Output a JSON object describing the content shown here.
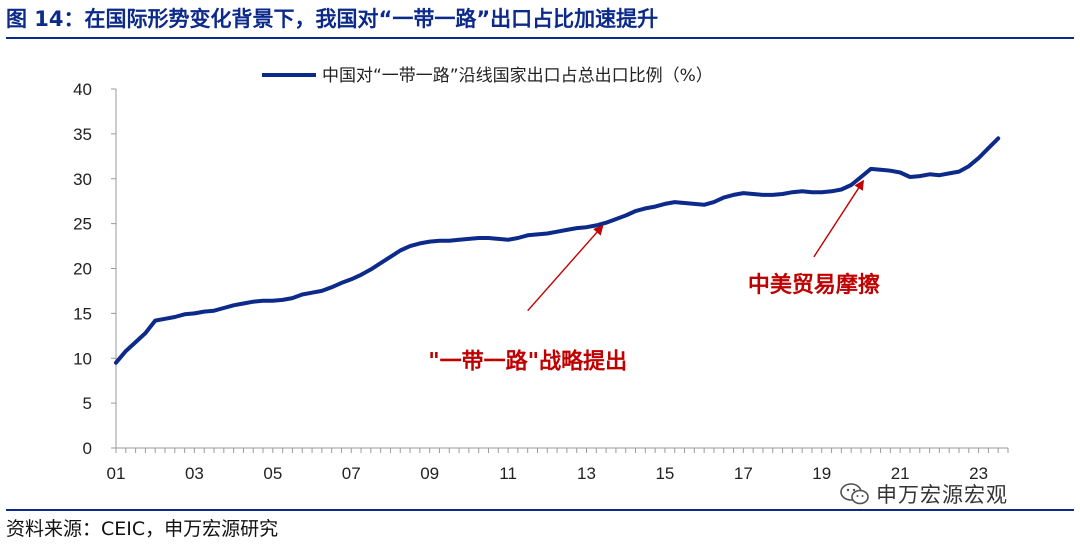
{
  "figure": {
    "title": "图 14：在国际形势变化背景下，我国对“一带一路”出口占比加速提升",
    "source": "资料来源：CEIC，申万宏源研究",
    "watermark": "申万宏源宏观",
    "accent_color": "#0b2a8a",
    "annotation_color": "#c00000"
  },
  "chart_data": {
    "type": "line",
    "legend": {
      "position": "top-center"
    },
    "grid": false,
    "ylim": [
      0,
      40
    ],
    "yticks": [
      "0",
      "5",
      "10",
      "15",
      "20",
      "25",
      "30",
      "35",
      "40"
    ],
    "xlim": [
      2001,
      2023.75
    ],
    "xticks": [
      {
        "value": 2001,
        "label": "01"
      },
      {
        "value": 2003,
        "label": "03"
      },
      {
        "value": 2005,
        "label": "05"
      },
      {
        "value": 2007,
        "label": "07"
      },
      {
        "value": 2009,
        "label": "09"
      },
      {
        "value": 2011,
        "label": "11"
      },
      {
        "value": 2013,
        "label": "13"
      },
      {
        "value": 2015,
        "label": "15"
      },
      {
        "value": 2017,
        "label": "17"
      },
      {
        "value": 2019,
        "label": "19"
      },
      {
        "value": 2021,
        "label": "21"
      },
      {
        "value": 2023,
        "label": "23"
      }
    ],
    "series": [
      {
        "name": "中国对“一带一路”沿线国家出口占总出口比例（%）",
        "color": "#0b2a8a",
        "points": [
          [
            2001.0,
            9.5
          ],
          [
            2001.25,
            10.8
          ],
          [
            2001.5,
            11.8
          ],
          [
            2001.75,
            12.8
          ],
          [
            2002.0,
            14.2
          ],
          [
            2002.25,
            14.4
          ],
          [
            2002.5,
            14.6
          ],
          [
            2002.75,
            14.9
          ],
          [
            2003.0,
            15.0
          ],
          [
            2003.25,
            15.2
          ],
          [
            2003.5,
            15.3
          ],
          [
            2003.75,
            15.6
          ],
          [
            2004.0,
            15.9
          ],
          [
            2004.25,
            16.1
          ],
          [
            2004.5,
            16.3
          ],
          [
            2004.75,
            16.4
          ],
          [
            2005.0,
            16.4
          ],
          [
            2005.25,
            16.5
          ],
          [
            2005.5,
            16.7
          ],
          [
            2005.75,
            17.1
          ],
          [
            2006.0,
            17.3
          ],
          [
            2006.25,
            17.5
          ],
          [
            2006.5,
            17.9
          ],
          [
            2006.75,
            18.4
          ],
          [
            2007.0,
            18.8
          ],
          [
            2007.25,
            19.3
          ],
          [
            2007.5,
            19.9
          ],
          [
            2007.75,
            20.6
          ],
          [
            2008.0,
            21.3
          ],
          [
            2008.25,
            22.0
          ],
          [
            2008.5,
            22.5
          ],
          [
            2008.75,
            22.8
          ],
          [
            2009.0,
            23.0
          ],
          [
            2009.25,
            23.1
          ],
          [
            2009.5,
            23.1
          ],
          [
            2009.75,
            23.2
          ],
          [
            2010.0,
            23.3
          ],
          [
            2010.25,
            23.4
          ],
          [
            2010.5,
            23.4
          ],
          [
            2010.75,
            23.3
          ],
          [
            2011.0,
            23.2
          ],
          [
            2011.25,
            23.4
          ],
          [
            2011.5,
            23.7
          ],
          [
            2011.75,
            23.8
          ],
          [
            2012.0,
            23.9
          ],
          [
            2012.25,
            24.1
          ],
          [
            2012.5,
            24.3
          ],
          [
            2012.75,
            24.5
          ],
          [
            2013.0,
            24.6
          ],
          [
            2013.25,
            24.8
          ],
          [
            2013.5,
            25.1
          ],
          [
            2013.75,
            25.5
          ],
          [
            2014.0,
            25.9
          ],
          [
            2014.25,
            26.4
          ],
          [
            2014.5,
            26.7
          ],
          [
            2014.75,
            26.9
          ],
          [
            2015.0,
            27.2
          ],
          [
            2015.25,
            27.4
          ],
          [
            2015.5,
            27.3
          ],
          [
            2015.75,
            27.2
          ],
          [
            2016.0,
            27.1
          ],
          [
            2016.25,
            27.4
          ],
          [
            2016.5,
            27.9
          ],
          [
            2016.75,
            28.2
          ],
          [
            2017.0,
            28.4
          ],
          [
            2017.25,
            28.3
          ],
          [
            2017.5,
            28.2
          ],
          [
            2017.75,
            28.2
          ],
          [
            2018.0,
            28.3
          ],
          [
            2018.25,
            28.5
          ],
          [
            2018.5,
            28.6
          ],
          [
            2018.75,
            28.5
          ],
          [
            2019.0,
            28.5
          ],
          [
            2019.25,
            28.6
          ],
          [
            2019.5,
            28.8
          ],
          [
            2019.75,
            29.3
          ],
          [
            2020.0,
            30.2
          ],
          [
            2020.25,
            31.1
          ],
          [
            2020.5,
            31.0
          ],
          [
            2020.75,
            30.9
          ],
          [
            2021.0,
            30.7
          ],
          [
            2021.25,
            30.2
          ],
          [
            2021.5,
            30.3
          ],
          [
            2021.75,
            30.5
          ],
          [
            2022.0,
            30.4
          ],
          [
            2022.25,
            30.6
          ],
          [
            2022.5,
            30.8
          ],
          [
            2022.75,
            31.4
          ],
          [
            2023.0,
            32.3
          ],
          [
            2023.25,
            33.4
          ],
          [
            2023.5,
            34.5
          ]
        ]
      }
    ],
    "annotations": [
      {
        "text": "\"一带一路\"战略提出",
        "arrow_to": [
          2013.4,
          24.7
        ],
        "arrow_from": [
          2011.5,
          15.3
        ]
      },
      {
        "text": "中美贸易摩擦",
        "arrow_to": [
          2020.05,
          29.7
        ],
        "arrow_from": [
          2018.8,
          21.3
        ]
      }
    ]
  }
}
